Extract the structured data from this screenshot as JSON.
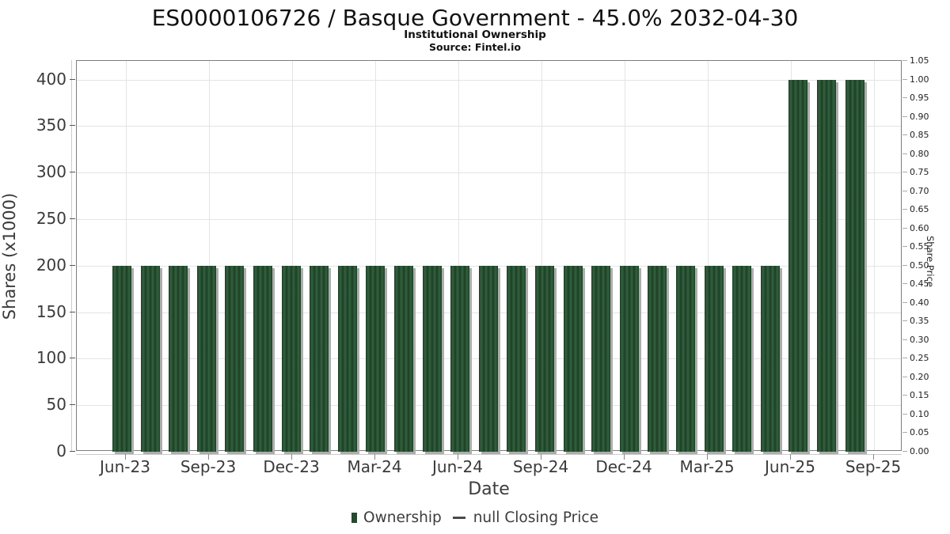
{
  "header": {
    "title": "ES0000106726 / Basque Government - 45.0% 2032-04-30",
    "subtitle": "Institutional Ownership",
    "source": "Source: Fintel.io"
  },
  "colors": {
    "bar_green": "#2c5737",
    "bar_stripe_dark": "#1b3e24",
    "bar_shadow": "#adadad",
    "gridline": "#e4e4e4",
    "axis_text": "#3a3a3a",
    "legend_dash": "#4a4a4a"
  },
  "chart_data": {
    "type": "bar",
    "title": "ES0000106726 / Basque Government - 45.0% 2032-04-30",
    "subtitle": "Institutional Ownership",
    "source": "Source: Fintel.io",
    "x": [
      "Jun-23",
      "Jul-23",
      "Aug-23",
      "Sep-23",
      "Oct-23",
      "Nov-23",
      "Dec-23",
      "Jan-24",
      "Feb-24",
      "Mar-24",
      "Apr-24",
      "May-24",
      "Jun-24",
      "Jul-24",
      "Aug-24",
      "Sep-24",
      "Oct-24",
      "Nov-24",
      "Dec-24",
      "Jan-25",
      "Feb-25",
      "Mar-25",
      "Apr-25",
      "May-25",
      "Jun-25",
      "Jul-25",
      "Aug-25"
    ],
    "series": [
      {
        "name": "Ownership",
        "values": [
          200,
          200,
          200,
          200,
          200,
          200,
          200,
          200,
          200,
          200,
          200,
          200,
          200,
          200,
          200,
          200,
          200,
          200,
          200,
          200,
          200,
          200,
          200,
          200,
          400,
          400,
          400
        ]
      },
      {
        "name": "null Closing Price",
        "values": []
      }
    ],
    "xlabel": "Date",
    "x_tick_labels": [
      "Jun-23",
      "Sep-23",
      "Dec-23",
      "Mar-24",
      "Jun-24",
      "Sep-24",
      "Dec-24",
      "Mar-25",
      "Jun-25",
      "Sep-25"
    ],
    "left_axis": {
      "label": "Shares (x1000)",
      "ticks": [
        0,
        50,
        100,
        150,
        200,
        250,
        300,
        350,
        400
      ],
      "lim": [
        0,
        420
      ]
    },
    "right_axis": {
      "label": "Share Price",
      "ticks": [
        0,
        0.05,
        0.1,
        0.15,
        0.2,
        0.25,
        0.3,
        0.35,
        0.4,
        0.45,
        0.5,
        0.55,
        0.6,
        0.65,
        0.7,
        0.75,
        0.8,
        0.85,
        0.9,
        0.95,
        1.0,
        1.05
      ],
      "lim": [
        0,
        1.05
      ]
    },
    "grid": true,
    "legend_position": "bottom",
    "legend": [
      {
        "label": "Ownership",
        "marker": "square",
        "color": "#27492f"
      },
      {
        "label": "null Closing Price",
        "marker": "dash",
        "color": "#4a4a4a"
      }
    ]
  }
}
